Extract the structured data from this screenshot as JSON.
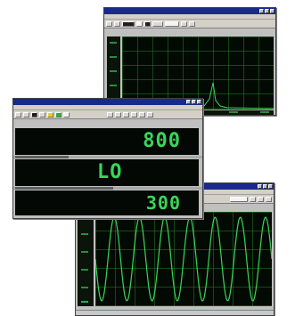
{
  "digital_meter": {
    "readouts": [
      {
        "value": "800"
      },
      {
        "value": "LO"
      },
      {
        "value": "300"
      }
    ]
  },
  "colors": {
    "titlebar": "#1a2a8a",
    "screen_bg": "#030a03",
    "trace": "#39d65a",
    "grid": "#2f8a3a"
  }
}
